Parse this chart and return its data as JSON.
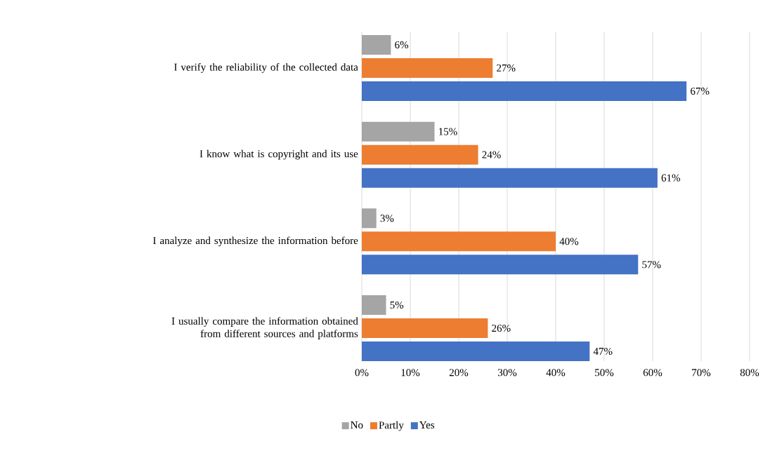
{
  "chart_data": {
    "type": "bar",
    "orientation": "horizontal",
    "categories": [
      "I verify the reliability of the collected data",
      "I know what is copyright and its use",
      "I analyze and synthesize the information before",
      "I usually compare the information obtained from different sources and platforms"
    ],
    "series": [
      {
        "name": "No",
        "color": "#a5a5a5",
        "values": [
          6,
          15,
          3,
          5
        ],
        "value_labels": [
          "6%",
          "15%",
          "3%",
          "5%"
        ]
      },
      {
        "name": "Partly",
        "color": "#ed7d31",
        "values": [
          27,
          24,
          40,
          26
        ],
        "value_labels": [
          "27%",
          "24%",
          "40%",
          "26%"
        ]
      },
      {
        "name": "Yes",
        "color": "#4472c4",
        "values": [
          67,
          61,
          57,
          47
        ],
        "value_labels": [
          "67%",
          "61%",
          "57%",
          "47%"
        ]
      }
    ],
    "xlim": [
      0,
      80
    ],
    "xticks": [
      {
        "value": 0,
        "label": "0%"
      },
      {
        "value": 10,
        "label": "10%"
      },
      {
        "value": 20,
        "label": "20%"
      },
      {
        "value": 30,
        "label": "30%"
      },
      {
        "value": 40,
        "label": "40%"
      },
      {
        "value": 50,
        "label": "50%"
      },
      {
        "value": 60,
        "label": "60%"
      },
      {
        "value": 70,
        "label": "70%"
      },
      {
        "value": 80,
        "label": "80%"
      }
    ],
    "grid": "x",
    "legend": "bottom"
  }
}
